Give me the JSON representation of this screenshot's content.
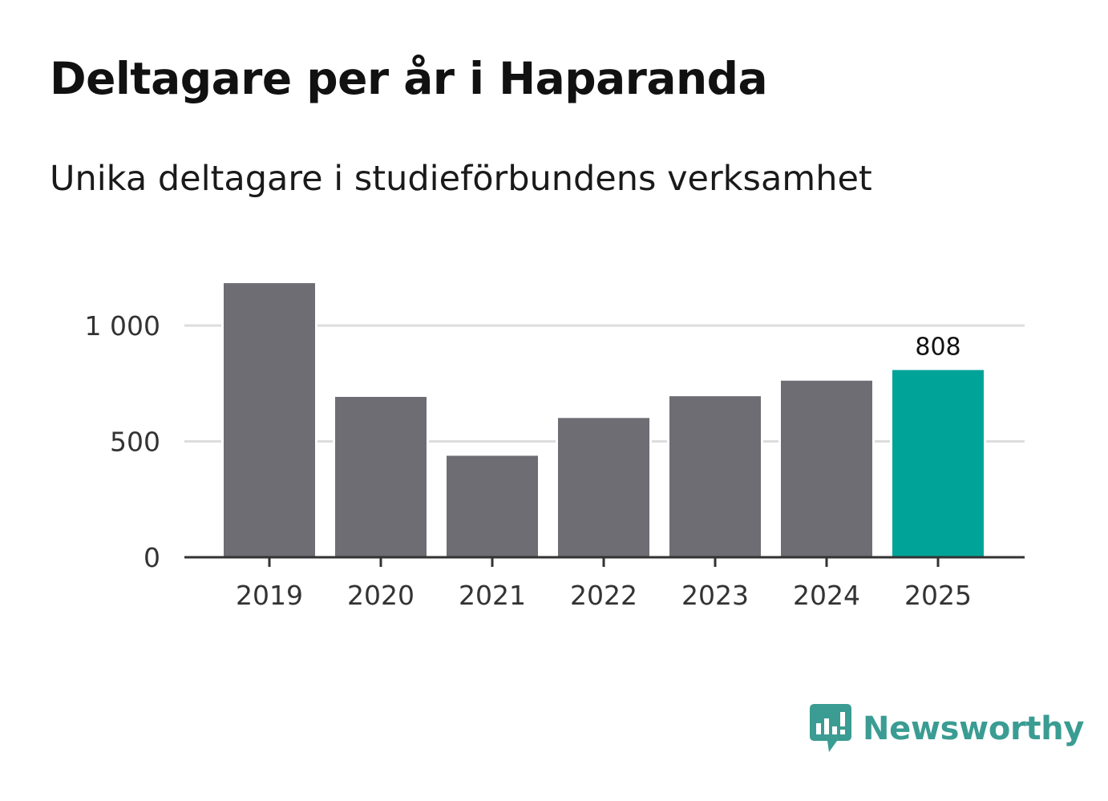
{
  "chart_data": {
    "type": "bar",
    "title": "Deltagare per år i Haparanda",
    "subtitle": "Unika deltagare i studieförbundens verksamhet",
    "categories": [
      "2019",
      "2020",
      "2021",
      "2022",
      "2023",
      "2024",
      "2025"
    ],
    "values": [
      1183,
      692,
      438,
      601,
      695,
      762,
      808
    ],
    "highlight_index": 6,
    "data_labels": [
      {
        "index": 6,
        "text": "808"
      }
    ],
    "xlabel": "",
    "ylabel": "",
    "ylim": [
      0,
      1200
    ],
    "yticks": [
      {
        "value": 0,
        "label": "0"
      },
      {
        "value": 500,
        "label": "500"
      },
      {
        "value": 1000,
        "label": "1 000"
      }
    ],
    "grid": true
  },
  "colors": {
    "bar": "#6e6d74",
    "highlight": "#00a398",
    "grid": "#dddddd",
    "axis": "#333333",
    "brand": "#3a9c92"
  },
  "brand": {
    "name": "Newsworthy",
    "icon": "newsworthy-logo-icon"
  }
}
